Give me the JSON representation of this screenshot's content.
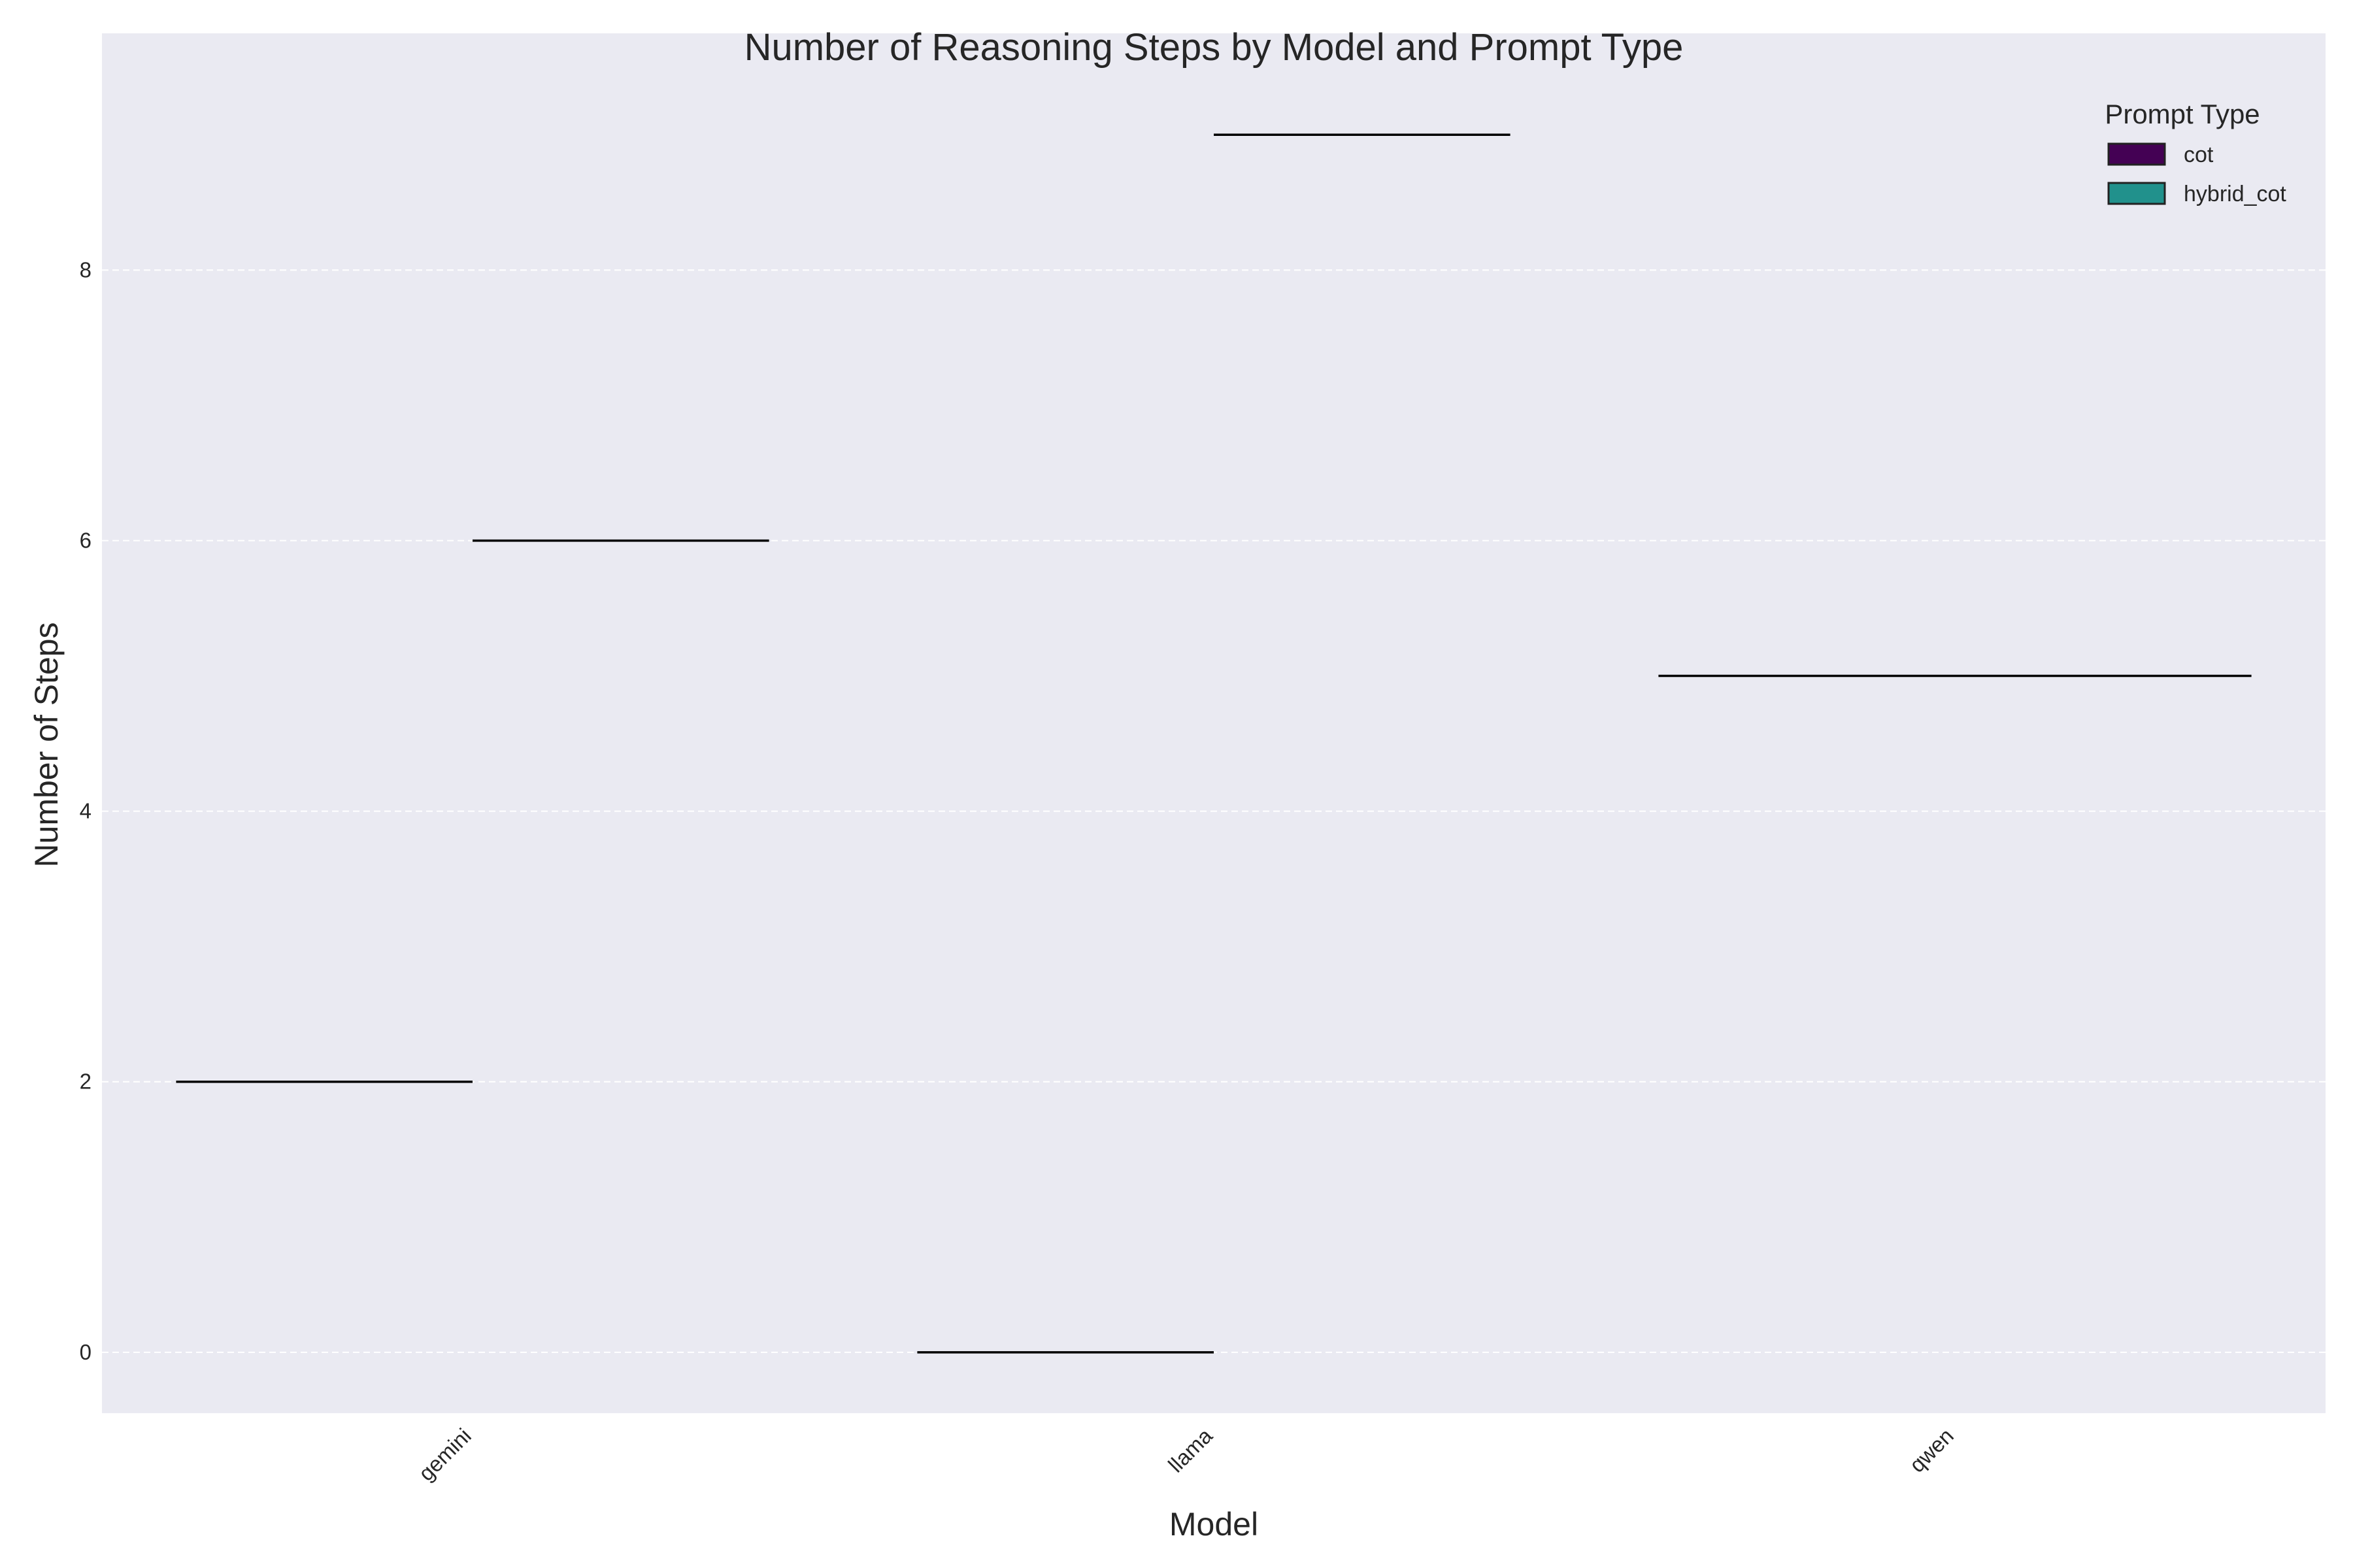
{
  "chart_data": {
    "type": "violin",
    "title": "Number of Reasoning Steps by Model and Prompt Type",
    "xlabel": "Model",
    "ylabel": "Number of Steps",
    "categories": [
      "gemini",
      "llama",
      "qwen"
    ],
    "ylim": [
      -0.45,
      9.75
    ],
    "yticks": [
      0,
      2,
      4,
      6,
      8
    ],
    "grid": true,
    "legend": {
      "title": "Prompt Type",
      "placement": "top-right"
    },
    "series": [
      {
        "name": "cot",
        "color": "#440154",
        "values": [
          2,
          0,
          5
        ]
      },
      {
        "name": "hybrid_cot",
        "color": "#21918c",
        "values": [
          6,
          9,
          5
        ]
      }
    ],
    "colors": {
      "plot_background": "#eaeaf2",
      "grid": "#ffffff",
      "mark": "#000000",
      "text": "#262626"
    }
  }
}
